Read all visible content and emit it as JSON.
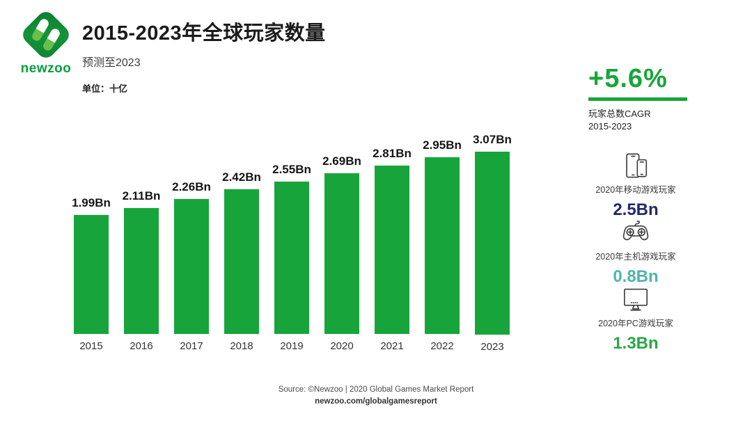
{
  "header": {
    "logo_text": "newzoo",
    "title": "2015-2023年全球玩家数量",
    "subtitle": "预测至2023",
    "unit": "单位：十亿"
  },
  "cagr": {
    "value": "+5.6%",
    "label_line1": "玩家总数CAGR",
    "label_line2": "2015-2023"
  },
  "chart_data": {
    "type": "bar",
    "title": "2015-2023年全球玩家数量",
    "categories": [
      "2015",
      "2016",
      "2017",
      "2018",
      "2019",
      "2020",
      "2021",
      "2022",
      "2023"
    ],
    "values": [
      1.99,
      2.11,
      2.26,
      2.42,
      2.55,
      2.69,
      2.81,
      2.95,
      3.07
    ],
    "value_labels": [
      "1.99Bn",
      "2.11Bn",
      "2.26Bn",
      "2.42Bn",
      "2.55Bn",
      "2.69Bn",
      "2.81Bn",
      "2.95Bn",
      "3.07Bn"
    ],
    "unit": "Bn (十亿)",
    "xlabel": "",
    "ylabel": "",
    "ylim": [
      0,
      3.2
    ],
    "grid": false,
    "legend": false,
    "bar_color": "#17a53b",
    "label_position": "above-bars"
  },
  "stats": [
    {
      "icon": "mobile-devices-icon",
      "label": "2020年移动游戏玩家",
      "value": "2.5Bn",
      "color": "#23276a"
    },
    {
      "icon": "gamepad-icon",
      "label": "2020年主机游戏玩家",
      "value": "0.8Bn",
      "color": "#4db6ab"
    },
    {
      "icon": "monitor-icon",
      "label": "2020年PC游戏玩家",
      "value": "1.3Bn",
      "color": "#2aa745"
    }
  ],
  "footer": {
    "source": "Source: ©Newzoo | 2020 Global Games Market Report",
    "url": "newzoo.com/globalgamesreport"
  },
  "colors": {
    "brand_green": "#17a53b",
    "logo_green": "#00a13e",
    "navy": "#23276a",
    "teal": "#4db6ab",
    "icon_stroke": "#3f3f3f"
  }
}
